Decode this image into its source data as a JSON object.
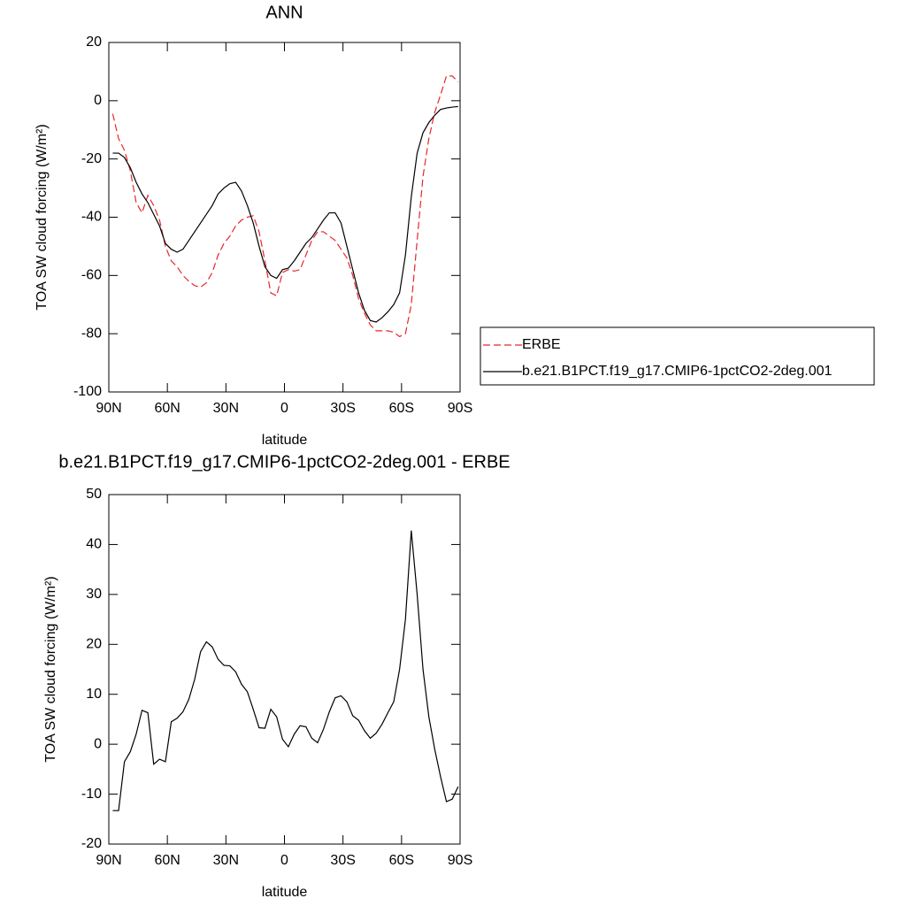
{
  "chart_data": [
    {
      "type": "line",
      "title": "ANN",
      "xlabel": "latitude",
      "ylabel": "TOA SW cloud forcing (W/m²)",
      "x": [
        88,
        85,
        82,
        79,
        76,
        73,
        70,
        67,
        64,
        61,
        58,
        55,
        52,
        49,
        46,
        43,
        40,
        37,
        34,
        31,
        28,
        25,
        22,
        19,
        16,
        13,
        10,
        7,
        4,
        1,
        -2,
        -5,
        -8,
        -11,
        -14,
        -17,
        -20,
        -23,
        -26,
        -29,
        -32,
        -35,
        -38,
        -41,
        -44,
        -47,
        -50,
        -53,
        -56,
        -59,
        -62,
        -65,
        -68,
        -71,
        -74,
        -77,
        -80,
        -83,
        -86,
        -89
      ],
      "xlim": [
        90,
        -90
      ],
      "xticks": [
        {
          "value": 90,
          "label": "90N"
        },
        {
          "value": 60,
          "label": "60N"
        },
        {
          "value": 30,
          "label": "30N"
        },
        0,
        {
          "value": -30,
          "label": "30S"
        },
        {
          "value": -60,
          "label": "60S"
        },
        {
          "value": -90,
          "label": "90S"
        }
      ],
      "ylim": [
        -100,
        20
      ],
      "yticks": [
        -100,
        -80,
        -60,
        -40,
        -20,
        0,
        20
      ],
      "legend": "right",
      "series": [
        {
          "name": "ERBE",
          "color": "#e8262a",
          "style": "dashed",
          "values": [
            -4.5,
            -13,
            -17,
            -24,
            -35,
            -38.5,
            -32.5,
            -36,
            -41,
            -50,
            -55,
            -57,
            -60,
            -62,
            -63.5,
            -64,
            -62.5,
            -59,
            -53,
            -49,
            -46.5,
            -43,
            -41,
            -40,
            -39.5,
            -45,
            -55,
            -66,
            -67,
            -59,
            -58,
            -58.5,
            -58,
            -53,
            -48,
            -45,
            -45,
            -46.5,
            -48,
            -51,
            -54,
            -60,
            -68,
            -73,
            -77,
            -79,
            -79,
            -79,
            -79.5,
            -81,
            -80,
            -70,
            -48,
            -26,
            -13,
            -4,
            2,
            8.5,
            8.5,
            6.5
          ]
        },
        {
          "name": "b.e21.B1PCT.f19_g17.CMIP6-1pctCO2-2deg.001",
          "color": "#000000",
          "style": "solid",
          "values": [
            -18,
            -18,
            -19.5,
            -23,
            -28,
            -32,
            -35,
            -39,
            -43,
            -49,
            -51,
            -52,
            -51,
            -48,
            -45,
            -42,
            -39,
            -36,
            -32,
            -30,
            -28.5,
            -28,
            -31,
            -36,
            -42,
            -50,
            -57,
            -60,
            -61,
            -58,
            -57.5,
            -55,
            -52,
            -49,
            -47,
            -44,
            -41,
            -38.5,
            -38.5,
            -42,
            -50,
            -58,
            -66,
            -72,
            -75.5,
            -76,
            -74.5,
            -72.5,
            -70,
            -66,
            -53,
            -33,
            -18,
            -11,
            -7.5,
            -5,
            -3,
            -2.5,
            -2.2,
            -2
          ]
        }
      ]
    },
    {
      "type": "line",
      "title": "b.e21.B1PCT.f19_g17.CMIP6-1pctCO2-2deg.001 - ERBE",
      "xlabel": "latitude",
      "ylabel": "TOA SW cloud forcing (W/m²)",
      "x": [
        88,
        85,
        82,
        79,
        76,
        73,
        70,
        67,
        64,
        61,
        58,
        55,
        52,
        49,
        46,
        43,
        40,
        37,
        34,
        31,
        28,
        25,
        22,
        19,
        16,
        13,
        10,
        7,
        4,
        1,
        -2,
        -5,
        -8,
        -11,
        -14,
        -17,
        -20,
        -23,
        -26,
        -29,
        -32,
        -35,
        -38,
        -41,
        -44,
        -47,
        -50,
        -53,
        -56,
        -59,
        -62,
        -65,
        -68,
        -71,
        -74,
        -77,
        -80,
        -83,
        -86,
        -89
      ],
      "xlim": [
        90,
        -90
      ],
      "xticks": [
        {
          "value": 90,
          "label": "90N"
        },
        {
          "value": 60,
          "label": "60N"
        },
        {
          "value": 30,
          "label": "30N"
        },
        0,
        {
          "value": -30,
          "label": "30S"
        },
        {
          "value": -60,
          "label": "60S"
        },
        {
          "value": -90,
          "label": "90S"
        }
      ],
      "ylim": [
        -20,
        50
      ],
      "yticks": [
        -20,
        -10,
        0,
        10,
        20,
        30,
        40,
        50
      ],
      "series": [
        {
          "color": "#000000",
          "style": "solid",
          "values": [
            -13.3,
            -13.3,
            -3.5,
            -1.5,
            2,
            6.8,
            6.3,
            -4,
            -3,
            -3.5,
            4.5,
            5.2,
            6.5,
            9,
            13,
            18.5,
            20.5,
            19.5,
            17,
            15.8,
            15.7,
            14.5,
            12,
            10.5,
            7,
            3.3,
            3.2,
            7,
            5.5,
            1,
            -0.5,
            2,
            3.7,
            3.5,
            1.2,
            0.3,
            3,
            6.5,
            9.3,
            9.7,
            8.5,
            5.7,
            4.8,
            2.7,
            1.2,
            2.2,
            4,
            6.3,
            8.5,
            15,
            25,
            42.8,
            30,
            15,
            5.5,
            -1,
            -6.5,
            -11.5,
            -11,
            -8.5
          ]
        }
      ]
    }
  ]
}
